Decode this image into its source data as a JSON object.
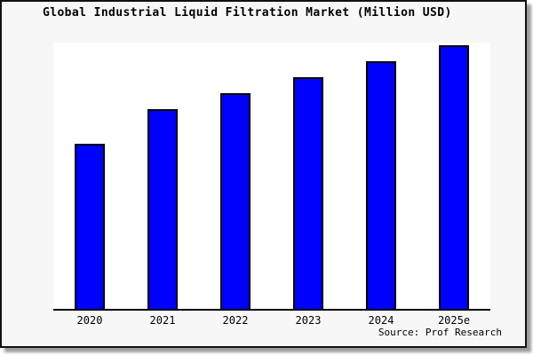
{
  "title": "Global Industrial Liquid Filtration Market (Million USD)",
  "source": "Source: Prof Research",
  "colors": {
    "bar_fill": "#0000FF",
    "bar_border": "#000000",
    "plot_bg": "#FFFFFF",
    "frame_bg": "#F7F7F7",
    "frame_border": "#111111",
    "axis": "#000000",
    "shadow": "#9C9C9C",
    "text": "#000000"
  },
  "chart_data": {
    "type": "bar",
    "title": "Global Industrial Liquid Filtration Market (Million USD)",
    "categories": [
      "2020",
      "2021",
      "2022",
      "2023",
      "2024",
      "2025e"
    ],
    "values": [
      62,
      75,
      81,
      87,
      93,
      99
    ],
    "value_basis": "No y-axis scale or data labels shown in image; values are bar heights estimated as percent of plot height",
    "xlabel": "",
    "ylabel": "",
    "ylim": [
      0,
      100
    ],
    "grid": false,
    "legend": false,
    "bar_color": "#0000FF",
    "source_note": "Source: Prof Research"
  }
}
